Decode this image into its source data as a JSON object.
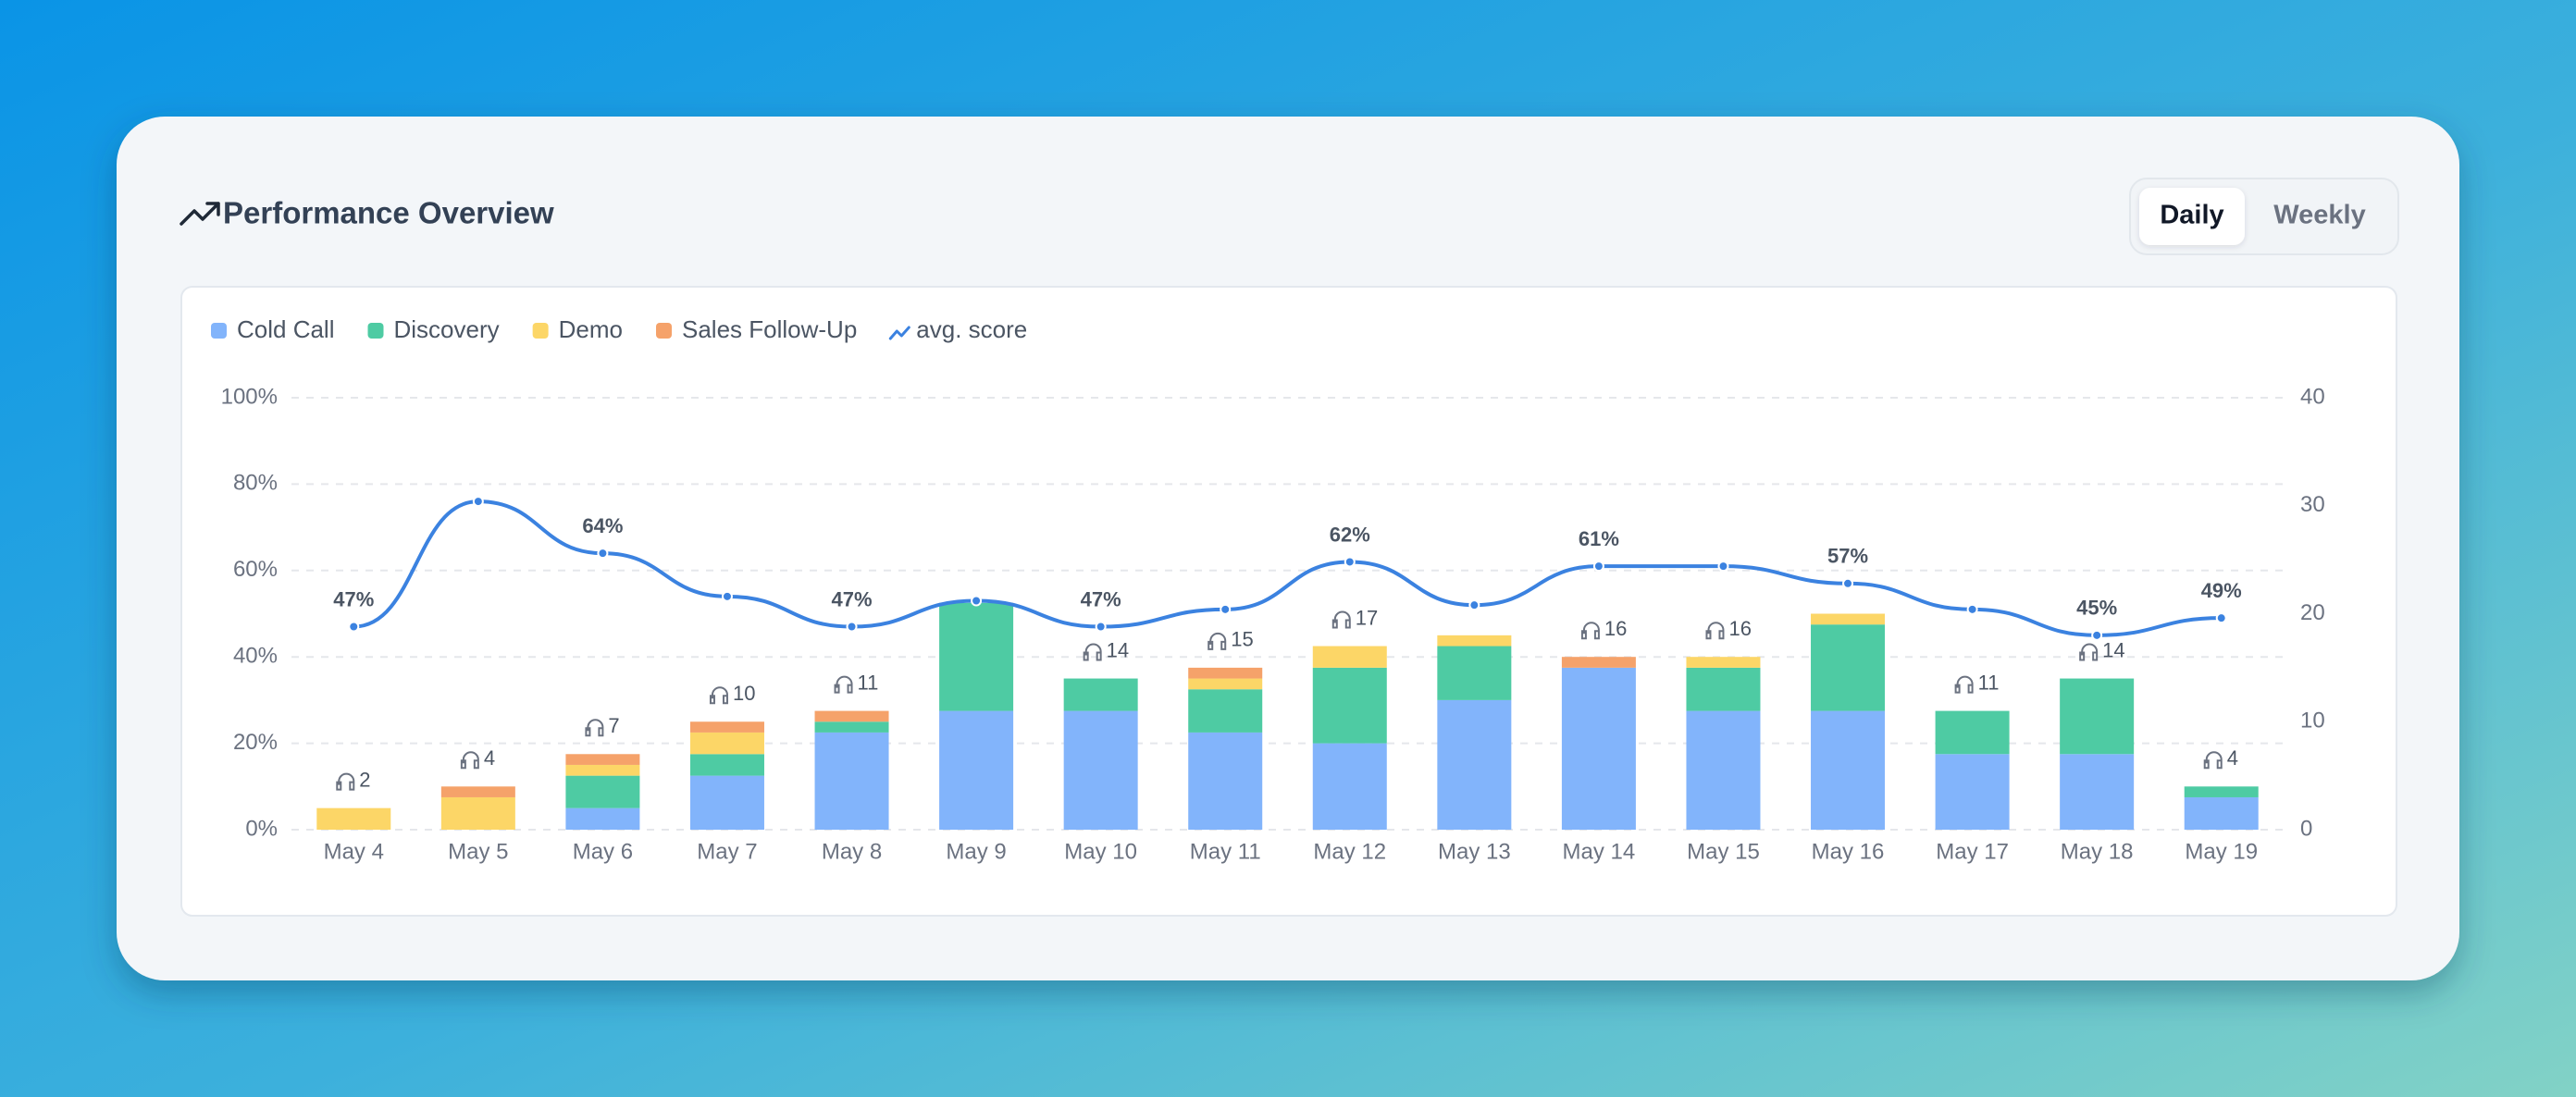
{
  "header": {
    "title": "Performance Overview",
    "toggle": [
      "Daily",
      "Weekly"
    ]
  },
  "chart_data": {
    "type": "bar",
    "categories": [
      "May 4",
      "May 5",
      "May 6",
      "May 7",
      "May 8",
      "May 9",
      "May 10",
      "May 11",
      "May 12",
      "May 13",
      "May 14",
      "May 15",
      "May 16",
      "May 17",
      "May 18",
      "May 19"
    ],
    "series": [
      {
        "name": "Cold Call",
        "type": "bar",
        "axis": "y2",
        "color": "#82b4fb",
        "values": [
          0,
          0,
          2,
          5,
          9,
          11,
          11,
          9,
          8,
          12,
          15,
          11,
          11,
          7,
          7,
          3
        ]
      },
      {
        "name": "Discovery",
        "type": "bar",
        "axis": "y2",
        "color": "#4ecba3",
        "values": [
          0,
          0,
          3,
          2,
          1,
          10,
          3,
          4,
          7,
          5,
          0,
          4,
          8,
          4,
          7,
          1
        ]
      },
      {
        "name": "Demo",
        "type": "bar",
        "axis": "y2",
        "color": "#fcd667",
        "values": [
          2,
          3,
          1,
          2,
          0,
          0,
          0,
          1,
          2,
          1,
          0,
          1,
          1,
          0,
          0,
          0
        ]
      },
      {
        "name": "Sales Follow-Up",
        "type": "bar",
        "axis": "y2",
        "color": "#f5a26a",
        "values": [
          0,
          1,
          1,
          1,
          1,
          0,
          0,
          1,
          0,
          0,
          1,
          0,
          0,
          0,
          0,
          0
        ]
      },
      {
        "name": "avg. score",
        "type": "line",
        "axis": "y",
        "color": "#3b82e0",
        "values": [
          47,
          76,
          64,
          54,
          47,
          53,
          47,
          51,
          62,
          52,
          61,
          61,
          57,
          51,
          45,
          49
        ],
        "value_labels": [
          "47%",
          null,
          "64%",
          null,
          "47%",
          null,
          "47%",
          null,
          "62%",
          null,
          "61%",
          null,
          "57%",
          null,
          "45%",
          "49%"
        ]
      }
    ],
    "call_counts": [
      2,
      4,
      7,
      10,
      11,
      null,
      14,
      15,
      17,
      null,
      16,
      16,
      null,
      11,
      14,
      4
    ],
    "ylim": [
      0,
      100
    ],
    "yticks": [
      {
        "value": 0,
        "label": "0%"
      },
      {
        "value": 20,
        "label": "20%"
      },
      {
        "value": 40,
        "label": "40%"
      },
      {
        "value": 60,
        "label": "60%"
      },
      {
        "value": 80,
        "label": "80%"
      },
      {
        "value": 100,
        "label": "100%"
      }
    ],
    "y2lim": [
      0,
      40
    ],
    "y2ticks": [
      0,
      10,
      20,
      30,
      40
    ],
    "grid": true
  }
}
